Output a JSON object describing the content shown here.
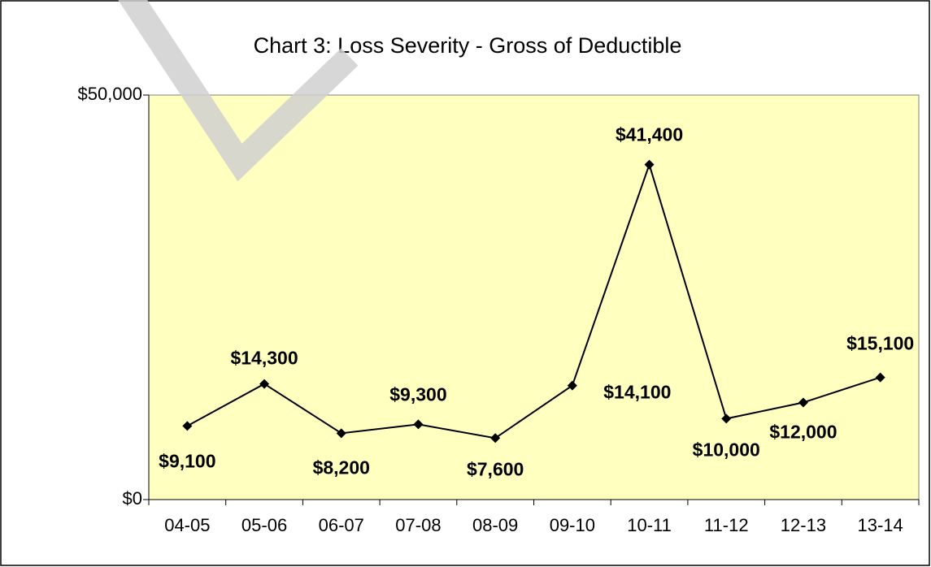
{
  "chart_data": {
    "type": "line",
    "title": "Chart 3: Loss Severity - Gross of Deductible",
    "categories": [
      "04-05",
      "05-06",
      "06-07",
      "07-08",
      "08-09",
      "09-10",
      "10-11",
      "11-12",
      "12-13",
      "13-14"
    ],
    "series": [
      {
        "name": "Loss Severity",
        "color": "#000000",
        "values": [
          9100,
          14300,
          8200,
          9300,
          7600,
          14100,
          41400,
          10000,
          12000,
          15100
        ],
        "value_labels": [
          "$9,100",
          "$14,300",
          "$8,200",
          "$9,300",
          "$7,600",
          "$14,100",
          "$41,400",
          "$10,000",
          "$12,000",
          "$15,100"
        ]
      }
    ],
    "ylim": [
      0,
      50000
    ],
    "yticks": [
      {
        "value": 0,
        "label": "$0"
      },
      {
        "value": 50000,
        "label": "$50,000"
      }
    ],
    "plot_background": "#ffffc0"
  }
}
